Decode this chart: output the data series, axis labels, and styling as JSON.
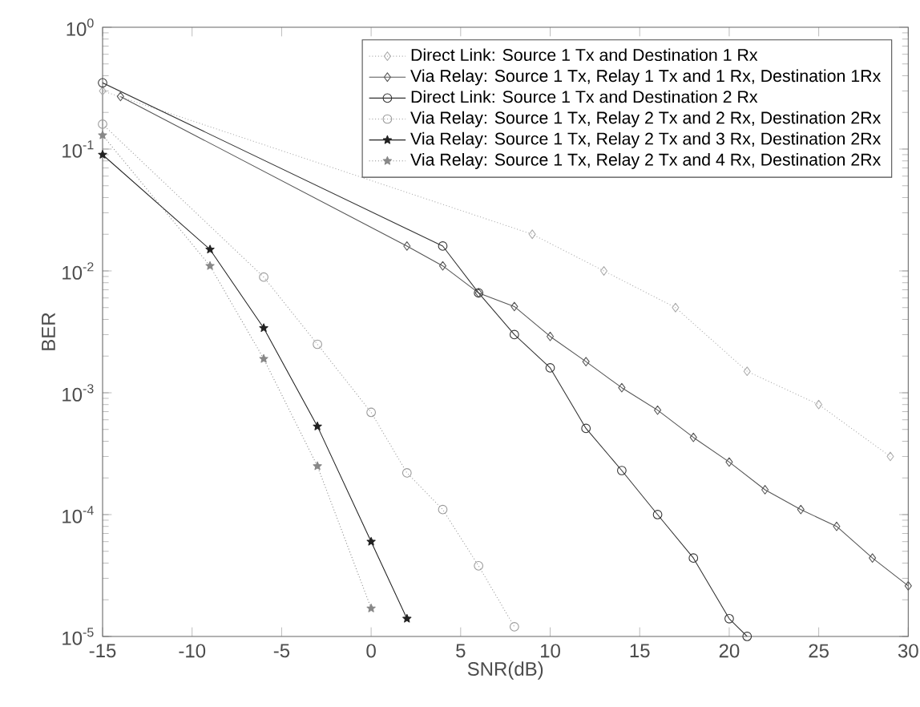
{
  "chart_data": {
    "type": "line",
    "xlabel": "SNR(dB)",
    "ylabel": "BER",
    "log": "y",
    "xlim": [
      -15,
      30
    ],
    "ylim": [
      1e-05,
      1
    ],
    "xticks": [
      -15,
      -10,
      -5,
      0,
      5,
      10,
      15,
      20,
      25,
      30
    ],
    "yticks": [
      {
        "value": 1e-05,
        "label": "10$^{-5}$"
      },
      {
        "value": 0.0001,
        "label": "10$^{-4}$"
      },
      {
        "value": 0.001,
        "label": "10$^{-3}$"
      },
      {
        "value": 0.01,
        "label": "10$^{-2}$"
      },
      {
        "value": 0.1,
        "label": "10$^{-1}$"
      },
      {
        "value": 1,
        "label": "10$^{0}$"
      }
    ],
    "grid": false,
    "legend": "top right",
    "series": [
      {
        "name": "Direct Link: Source 1 Tx and Destination 1 Rx",
        "color": "#aaaaaa",
        "line_style": "dotted",
        "marker": "diamond",
        "x": [
          -15,
          9,
          13,
          17,
          21,
          25,
          29
        ],
        "values": [
          0.3,
          0.02,
          0.01,
          0.005,
          0.0015,
          0.0008,
          0.0003
        ]
      },
      {
        "name": "Via Relay: Source 1 Tx, Relay 1 Tx and 1 Rx, Destination 1Rx",
        "color": "#555555",
        "line_style": "solid",
        "marker": "diamond",
        "x": [
          -14,
          2,
          4,
          6,
          8,
          10,
          12,
          14,
          16,
          18,
          20,
          22,
          24,
          26,
          28,
          30
        ],
        "values": [
          0.27,
          0.016,
          0.011,
          0.0066,
          0.0051,
          0.0029,
          0.0018,
          0.0011,
          0.00072,
          0.00043,
          0.00027,
          0.00016,
          0.00011,
          8e-05,
          4.4e-05,
          2.6e-05
        ]
      },
      {
        "name": "Direct Link: Source 1 Tx and Destination 2 Rx",
        "color": "#333333",
        "line_style": "solid",
        "marker": "circle",
        "x": [
          -15,
          4,
          6,
          8,
          10,
          12,
          14,
          16,
          18,
          20,
          21
        ],
        "values": [
          0.35,
          0.016,
          0.0066,
          0.003,
          0.0016,
          0.00051,
          0.00023,
          0.0001,
          4.4e-05,
          1.4e-05,
          1e-05
        ]
      },
      {
        "name": "Via Relay: Source 1 Tx, Relay 2 Tx and 2 Rx, Destination 2Rx",
        "color": "#999999",
        "line_style": "dotted",
        "marker": "circle",
        "x": [
          -15,
          -6,
          -3,
          0,
          2,
          4,
          6,
          8
        ],
        "values": [
          0.16,
          0.0089,
          0.0025,
          0.00069,
          0.00022,
          0.00011,
          3.8e-05,
          1.2e-05
        ]
      },
      {
        "name": "Via Relay: Source 1 Tx, Relay 2 Tx and 3 Rx, Destination 2Rx",
        "color": "#222222",
        "line_style": "solid",
        "marker": "star",
        "x": [
          -15,
          -9,
          -6,
          -3,
          0,
          2
        ],
        "values": [
          0.09,
          0.015,
          0.0034,
          0.00053,
          6e-05,
          1.4e-05
        ]
      },
      {
        "name": "Via Relay: Source 1 Tx, Relay 2 Tx and 4 Rx, Destination 2Rx",
        "color": "#888888",
        "line_style": "dotted",
        "marker": "star",
        "x": [
          -15,
          -9,
          -6,
          -3,
          0
        ],
        "values": [
          0.13,
          0.011,
          0.0019,
          0.00025,
          1.7e-05
        ]
      }
    ]
  }
}
